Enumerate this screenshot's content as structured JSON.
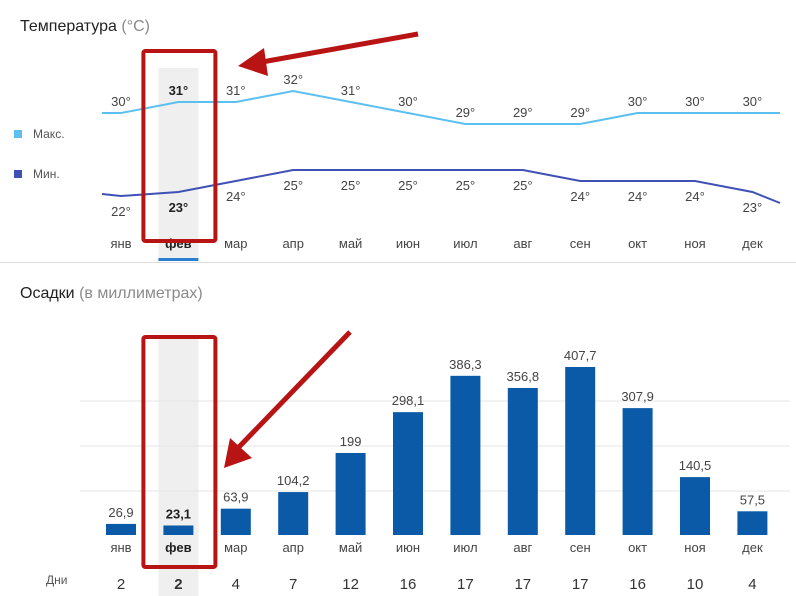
{
  "temperature": {
    "title": "Температура",
    "unit": "(°C)",
    "legend_max": "Макс.",
    "legend_min": "Мин.",
    "color_max": "#5bc0f0",
    "color_min": "#3f51b5"
  },
  "precipitation": {
    "title": "Осадки",
    "unit": "(в миллиметрах)",
    "days_label": "Дни",
    "bar_color": "#0a5aa8"
  },
  "highlight_color": "#b81414",
  "chart_data": [
    {
      "type": "line",
      "categories": [
        "янв",
        "фев",
        "мар",
        "апр",
        "май",
        "июн",
        "июл",
        "авг",
        "сен",
        "окт",
        "ноя",
        "дек"
      ],
      "series": [
        {
          "name": "Макс.",
          "values": [
            30,
            31,
            31,
            32,
            31,
            30,
            29,
            29,
            29,
            30,
            30,
            30
          ],
          "labels": [
            "30°",
            "31°",
            "31°",
            "32°",
            "31°",
            "30°",
            "29°",
            "29°",
            "29°",
            "30°",
            "30°",
            "30°"
          ]
        },
        {
          "name": "Мин.",
          "values": [
            22,
            23,
            24,
            25,
            25,
            25,
            25,
            25,
            24,
            24,
            24,
            23
          ],
          "labels": [
            "22°",
            "23°",
            "24°",
            "25°",
            "25°",
            "25°",
            "25°",
            "25°",
            "24°",
            "24°",
            "24°",
            "23°"
          ]
        }
      ],
      "title": "Температура (°C)",
      "selected": "фев",
      "legend": "left"
    },
    {
      "type": "bar",
      "categories": [
        "янв",
        "фев",
        "мар",
        "апр",
        "май",
        "июн",
        "июл",
        "авг",
        "сен",
        "окт",
        "ноя",
        "дек"
      ],
      "values": [
        26.9,
        23.1,
        63.9,
        104.2,
        199,
        298.1,
        386.3,
        356.8,
        407.7,
        307.9,
        140.5,
        57.5
      ],
      "value_labels": [
        "26,9",
        "23,1",
        "63,9",
        "104,2",
        "199",
        "298,1",
        "386,3",
        "356,8",
        "407,7",
        "307,9",
        "140,5",
        "57,5"
      ],
      "days": [
        "2",
        "2",
        "4",
        "7",
        "12",
        "16",
        "17",
        "17",
        "17",
        "16",
        "10",
        "4"
      ],
      "title": "Осадки (в миллиметрах)",
      "selected": "фев"
    }
  ]
}
